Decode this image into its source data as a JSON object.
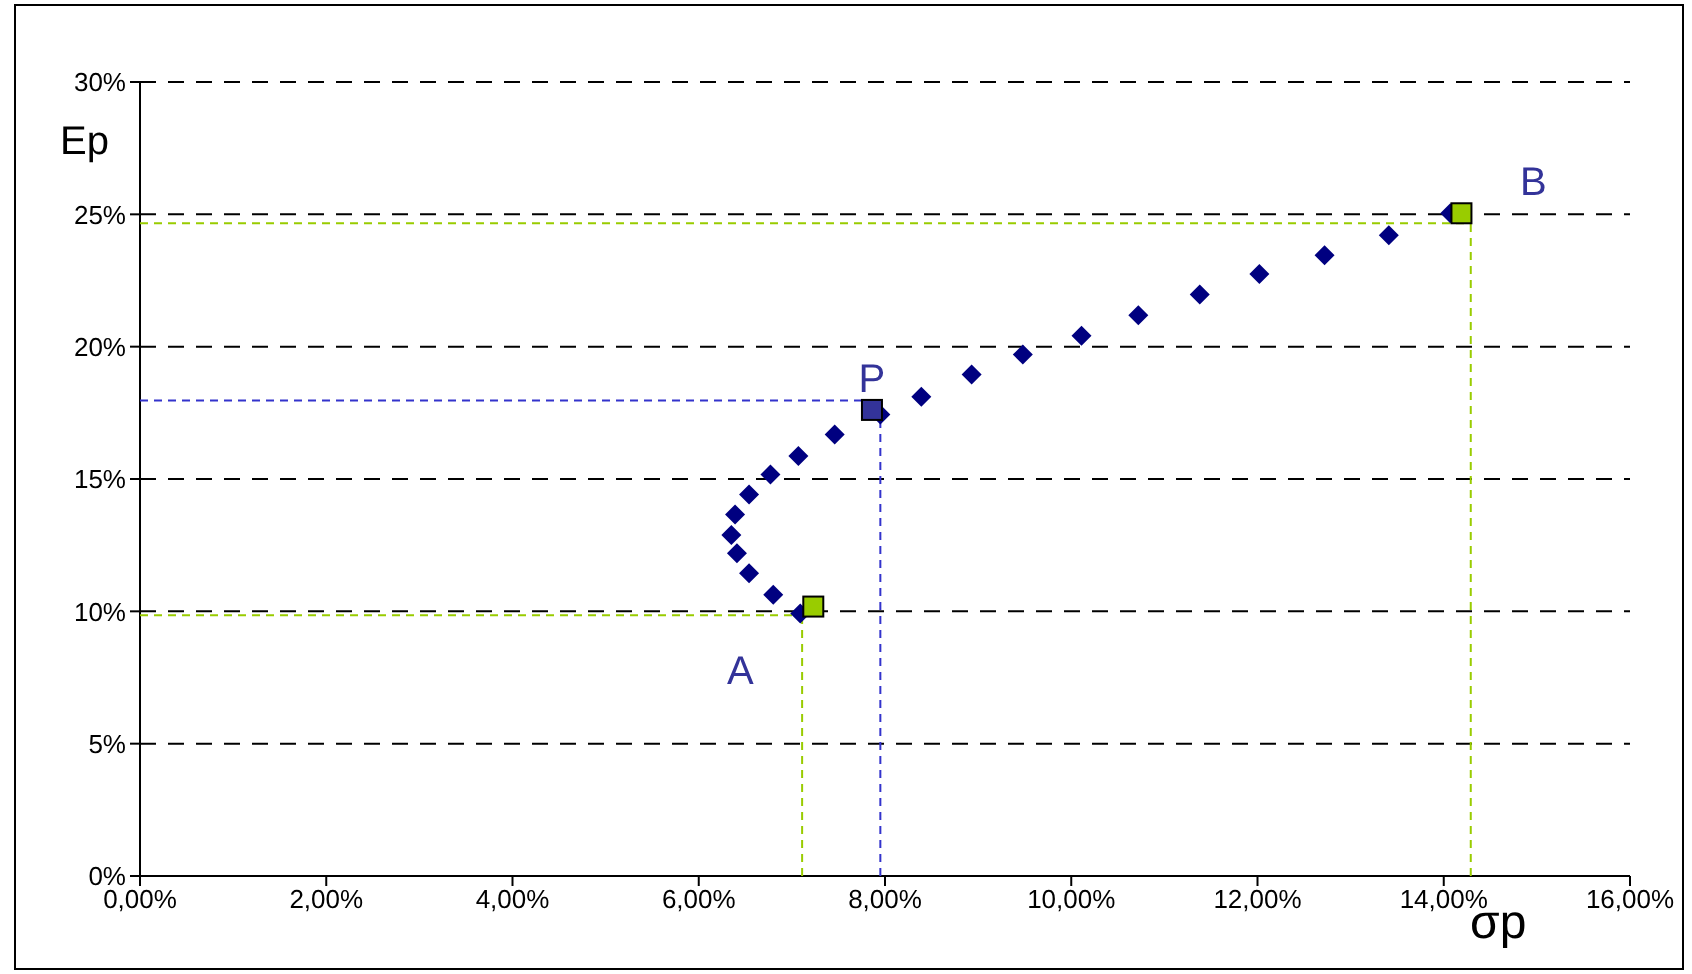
{
  "chart_data": {
    "type": "scatter",
    "xlabel": "σp",
    "ylabel": "Ep",
    "xlim": [
      0,
      16
    ],
    "ylim": [
      0,
      30
    ],
    "xticks": [
      {
        "value": 0,
        "label": "0,00%"
      },
      {
        "value": 2,
        "label": "2,00%"
      },
      {
        "value": 4,
        "label": "4,00%"
      },
      {
        "value": 6,
        "label": "6,00%"
      },
      {
        "value": 8,
        "label": "8,00%"
      },
      {
        "value": 10,
        "label": "10,00%"
      },
      {
        "value": 12,
        "label": "12,00%"
      },
      {
        "value": 14,
        "label": "14,00%"
      },
      {
        "value": 16,
        "label": "16,00%"
      }
    ],
    "yticks": [
      {
        "value": 0,
        "label": "0%"
      },
      {
        "value": 5,
        "label": "5%"
      },
      {
        "value": 10,
        "label": "10%"
      },
      {
        "value": 15,
        "label": "15%"
      },
      {
        "value": 20,
        "label": "20%"
      },
      {
        "value": 25,
        "label": "25%"
      },
      {
        "value": 30,
        "label": "30%"
      }
    ],
    "grid": "y",
    "legend": false,
    "series": [
      {
        "type": "line",
        "color": "#99cc00",
        "line_style": "dashed",
        "marker": "none",
        "x": [
          0,
          7.11
        ],
        "values": [
          9.85,
          9.85
        ]
      },
      {
        "type": "line",
        "color": "#99cc00",
        "line_style": "dashed",
        "marker": "none",
        "x": [
          7.11,
          7.11
        ],
        "values": [
          0,
          9.85
        ]
      },
      {
        "type": "line",
        "color": "#99cc00",
        "line_style": "dashed",
        "marker": "none",
        "x": [
          0,
          14.29
        ],
        "values": [
          24.66,
          24.66
        ]
      },
      {
        "type": "line",
        "color": "#99cc00",
        "line_style": "dashed",
        "marker": "none",
        "x": [
          14.29,
          14.29
        ],
        "values": [
          0,
          24.66
        ]
      },
      {
        "type": "line",
        "color": "#3333cc",
        "line_style": "dashed",
        "marker": "none",
        "x": [
          0,
          7.95
        ],
        "values": [
          17.97,
          17.97
        ]
      },
      {
        "type": "line",
        "color": "#3333cc",
        "line_style": "dashed",
        "marker": "none",
        "x": [
          7.95,
          7.95
        ],
        "values": [
          0,
          17.97
        ]
      },
      {
        "color": "#000080",
        "marker": "diamond",
        "x": [
          7.09,
          6.8,
          6.54,
          6.41,
          6.35,
          6.39,
          6.54,
          6.77,
          7.07,
          7.46,
          7.95,
          8.39,
          8.93,
          9.48,
          10.11,
          10.72,
          11.38,
          12.02,
          12.72,
          13.41,
          14.07
        ],
        "values": [
          9.92,
          10.63,
          11.44,
          12.19,
          12.88,
          13.66,
          14.41,
          15.17,
          15.87,
          16.68,
          17.44,
          18.11,
          18.95,
          19.7,
          20.41,
          21.19,
          21.97,
          22.75,
          23.45,
          24.21,
          25.04
        ]
      },
      {
        "color": "#99cc00",
        "marker": "square",
        "x": [
          7.23,
          14.19
        ],
        "values": [
          10.18,
          25.04
        ]
      },
      {
        "color": "#333399",
        "marker": "square",
        "x": [
          7.86
        ],
        "values": [
          17.61
        ]
      }
    ],
    "annotations": [
      {
        "text": "A",
        "x": 7.09,
        "y": 9.92
      },
      {
        "text": "P",
        "x": 7.86,
        "y": 17.61
      },
      {
        "text": "B",
        "x": 14.19,
        "y": 25.04
      }
    ]
  }
}
